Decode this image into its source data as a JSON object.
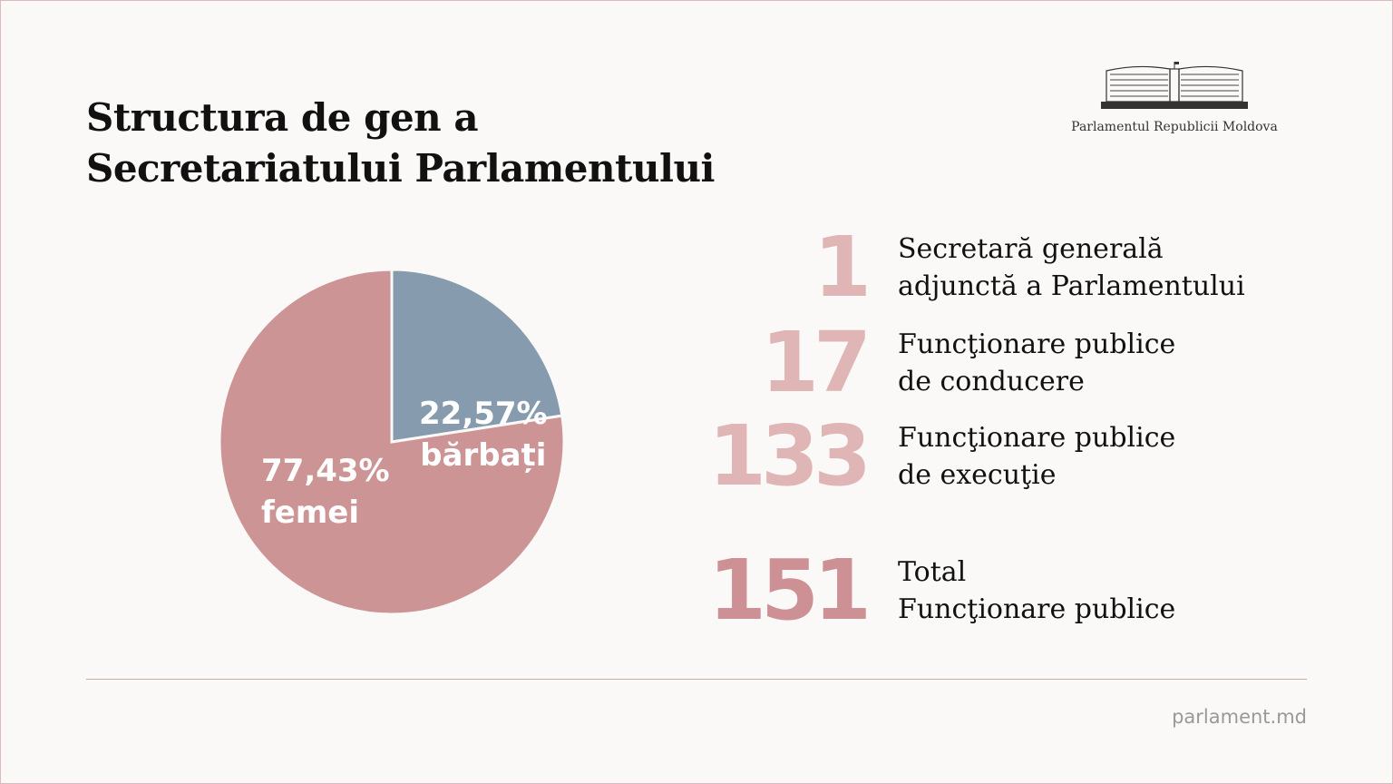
{
  "title_line1": "Structura de gen a",
  "title_line2": "Secretariatului Parlamentului",
  "logo": {
    "text": "Parlamentul Republicii Moldova",
    "icon": "parliament-building-icon"
  },
  "chart_data": {
    "type": "pie",
    "slices": [
      {
        "label": "bărbați",
        "value": 22.57,
        "value_label": "22,57%",
        "color": "#869cae"
      },
      {
        "label": "femei",
        "value": 77.43,
        "value_label": "77,43%",
        "color": "#cd9496"
      }
    ],
    "legend": "none"
  },
  "stats": [
    {
      "number": "1",
      "line1": "Secretară generală",
      "line2": "adjunctă a Parlamentului"
    },
    {
      "number": "17",
      "line1": "Funcţionare publice",
      "line2": "de conducere"
    },
    {
      "number": "133",
      "line1": "Funcţionare publice",
      "line2": "de execuţie"
    },
    {
      "number": "151",
      "line1": "Total",
      "line2": "Funcţionare publice"
    }
  ],
  "colors": {
    "number": "#dfb5b5",
    "total_number": "#cc9095",
    "accent_line": "#d8a5a5"
  },
  "footer": "parlament.md"
}
